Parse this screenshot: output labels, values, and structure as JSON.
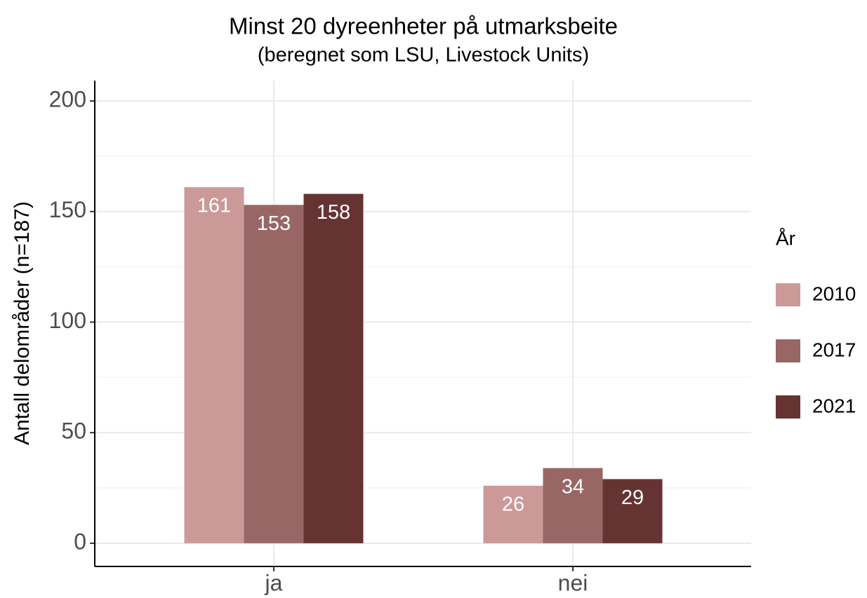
{
  "chart_data": {
    "type": "bar",
    "title": "Minst 20 dyreenheter på utmarksbeite",
    "subtitle": "(beregnet som LSU, Livestock Units)",
    "y_label": "Antall delområder (n=187)",
    "legend_title": "År",
    "categories": [
      "ja",
      "nei"
    ],
    "series": [
      {
        "name": "2010",
        "color": "#cc9999",
        "values": [
          161,
          26
        ]
      },
      {
        "name": "2017",
        "color": "#996666",
        "values": [
          153,
          34
        ]
      },
      {
        "name": "2021",
        "color": "#663333",
        "values": [
          158,
          29
        ]
      }
    ],
    "ylim": [
      -10.5,
      209.2
    ],
    "yticks": [
      0,
      50,
      100,
      150,
      200
    ],
    "minor_yticks": [
      25,
      75,
      125,
      175
    ],
    "grid": true,
    "legend": "right"
  }
}
